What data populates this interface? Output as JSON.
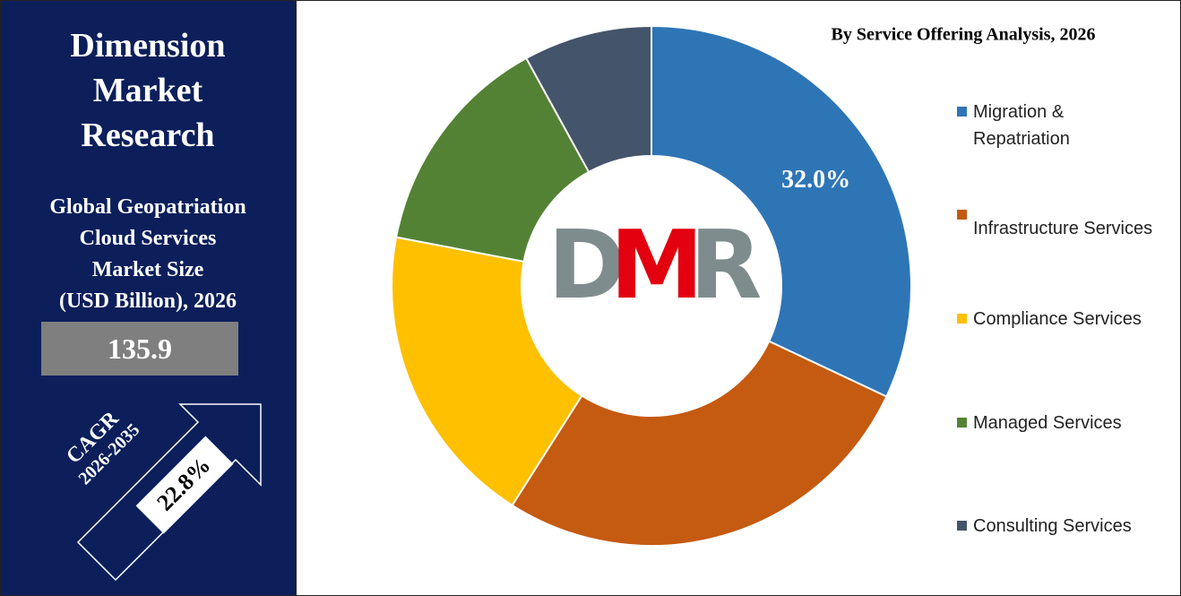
{
  "chart_data": {
    "type": "donut",
    "title": "By Service Offering Analysis, 2026",
    "categories": [
      "Migration & Repatriation",
      "Infrastructure Services",
      "Compliance Services",
      "Managed Services",
      "Consulting Services"
    ],
    "values": [
      32,
      27,
      19,
      14,
      8
    ],
    "value_labels": [
      "32.0%",
      null,
      null,
      null,
      null
    ],
    "colors": [
      "#2e75b6",
      "#c55a11",
      "#ffc000",
      "#548235",
      "#44546a"
    ],
    "center_logo": [
      "D",
      "M",
      "R"
    ]
  },
  "sidebar": {
    "brand": [
      "Dimension",
      "Market",
      "Research"
    ],
    "title_lines": [
      "Global Geopatriation",
      "Cloud Services",
      "Market Size",
      "(USD Billion), 2026"
    ],
    "market_size": 135.9,
    "cagr_label": "CAGR",
    "cagr_period": "2026-2035",
    "cagr_value": "22.8%"
  }
}
